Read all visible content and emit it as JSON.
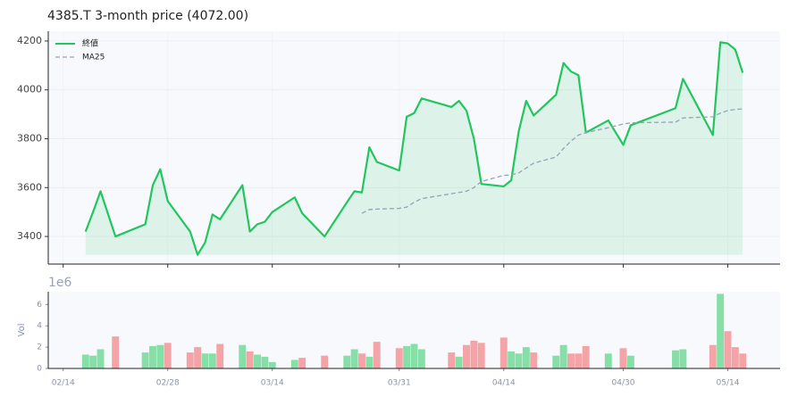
{
  "chart_data": {
    "type": "line",
    "title": "4385.T  3-month price (4072.00)",
    "x": [
      "02/17",
      "02/18",
      "02/19",
      "02/21",
      "02/25",
      "02/26",
      "02/27",
      "02/28",
      "03/03",
      "03/04",
      "03/05",
      "03/06",
      "03/07",
      "03/10",
      "03/11",
      "03/12",
      "03/13",
      "03/14",
      "03/17",
      "03/18",
      "03/21",
      "03/24",
      "03/25",
      "03/26",
      "03/27",
      "03/28",
      "03/31",
      "04/01",
      "04/02",
      "04/03",
      "04/07",
      "04/08",
      "04/09",
      "04/10",
      "04/11",
      "04/14",
      "04/15",
      "04/16",
      "04/17",
      "04/18",
      "04/21",
      "04/22",
      "04/23",
      "04/24",
      "04/25",
      "04/28",
      "04/30",
      "05/01",
      "05/07",
      "05/08",
      "05/12",
      "05/13",
      "05/14",
      "05/15",
      "05/16"
    ],
    "xlim": [
      "02/12",
      "05/21"
    ],
    "xticks": [
      "02/14",
      "02/28",
      "03/14",
      "03/31",
      "04/14",
      "04/30",
      "05/14"
    ],
    "ylim": [
      3287,
      4240
    ],
    "yticks": [
      3400,
      3600,
      3800,
      4000,
      4200
    ],
    "grid": true,
    "legend": "upper left",
    "series": [
      {
        "name": "終値",
        "color": "#22c55e",
        "fill": true,
        "values": [
          3420,
          3500,
          3585,
          3400,
          3450,
          3610,
          3675,
          3545,
          3420,
          3325,
          3375,
          3490,
          3470,
          3610,
          3420,
          3450,
          3460,
          3500,
          3560,
          3495,
          3400,
          3540,
          3585,
          3580,
          3765,
          3705,
          3670,
          3890,
          3905,
          3965,
          3930,
          3955,
          3915,
          3800,
          3615,
          3605,
          3630,
          3830,
          3955,
          3895,
          3980,
          4110,
          4075,
          4060,
          3825,
          3875,
          3775,
          3855,
          3925,
          4045,
          3815,
          4195,
          4190,
          4165,
          4070
        ]
      },
      {
        "name": "MA25",
        "color": "#94a3b8",
        "dashed": true,
        "values": [
          null,
          null,
          null,
          null,
          null,
          null,
          null,
          null,
          null,
          null,
          null,
          null,
          null,
          null,
          null,
          null,
          null,
          null,
          null,
          null,
          null,
          null,
          null,
          3495,
          3510,
          3512,
          3515,
          3520,
          3540,
          3555,
          3575,
          3580,
          3585,
          3600,
          3625,
          3650,
          3652,
          3660,
          3680,
          3700,
          3725,
          3760,
          3790,
          3815,
          3825,
          3845,
          3860,
          3865,
          3868,
          3885,
          3890,
          3905,
          3915,
          3920,
          3922
        ]
      }
    ],
    "volume": {
      "label": "Vol",
      "offset_label": "1e6",
      "up_color": "#86dfa6",
      "down_color": "#f4a3a7",
      "ylim": [
        0,
        7.2
      ],
      "yticks": [
        0,
        2,
        4,
        6
      ],
      "values": [
        1.3,
        1.2,
        1.8,
        3.0,
        1.5,
        2.1,
        2.2,
        2.4,
        1.5,
        2.0,
        1.4,
        1.4,
        2.3,
        2.2,
        1.6,
        1.3,
        1.1,
        0.6,
        0.8,
        1.0,
        1.2,
        1.2,
        1.8,
        1.4,
        1.1,
        2.5,
        1.9,
        2.1,
        2.3,
        1.8,
        1.5,
        1.1,
        2.2,
        2.6,
        2.4,
        2.9,
        1.6,
        1.4,
        2.0,
        1.5,
        1.2,
        2.2,
        1.4,
        1.4,
        2.1,
        1.4,
        1.9,
        1.2,
        1.7,
        1.8,
        2.2,
        7.0,
        3.5,
        2.0,
        1.4
      ]
    }
  }
}
